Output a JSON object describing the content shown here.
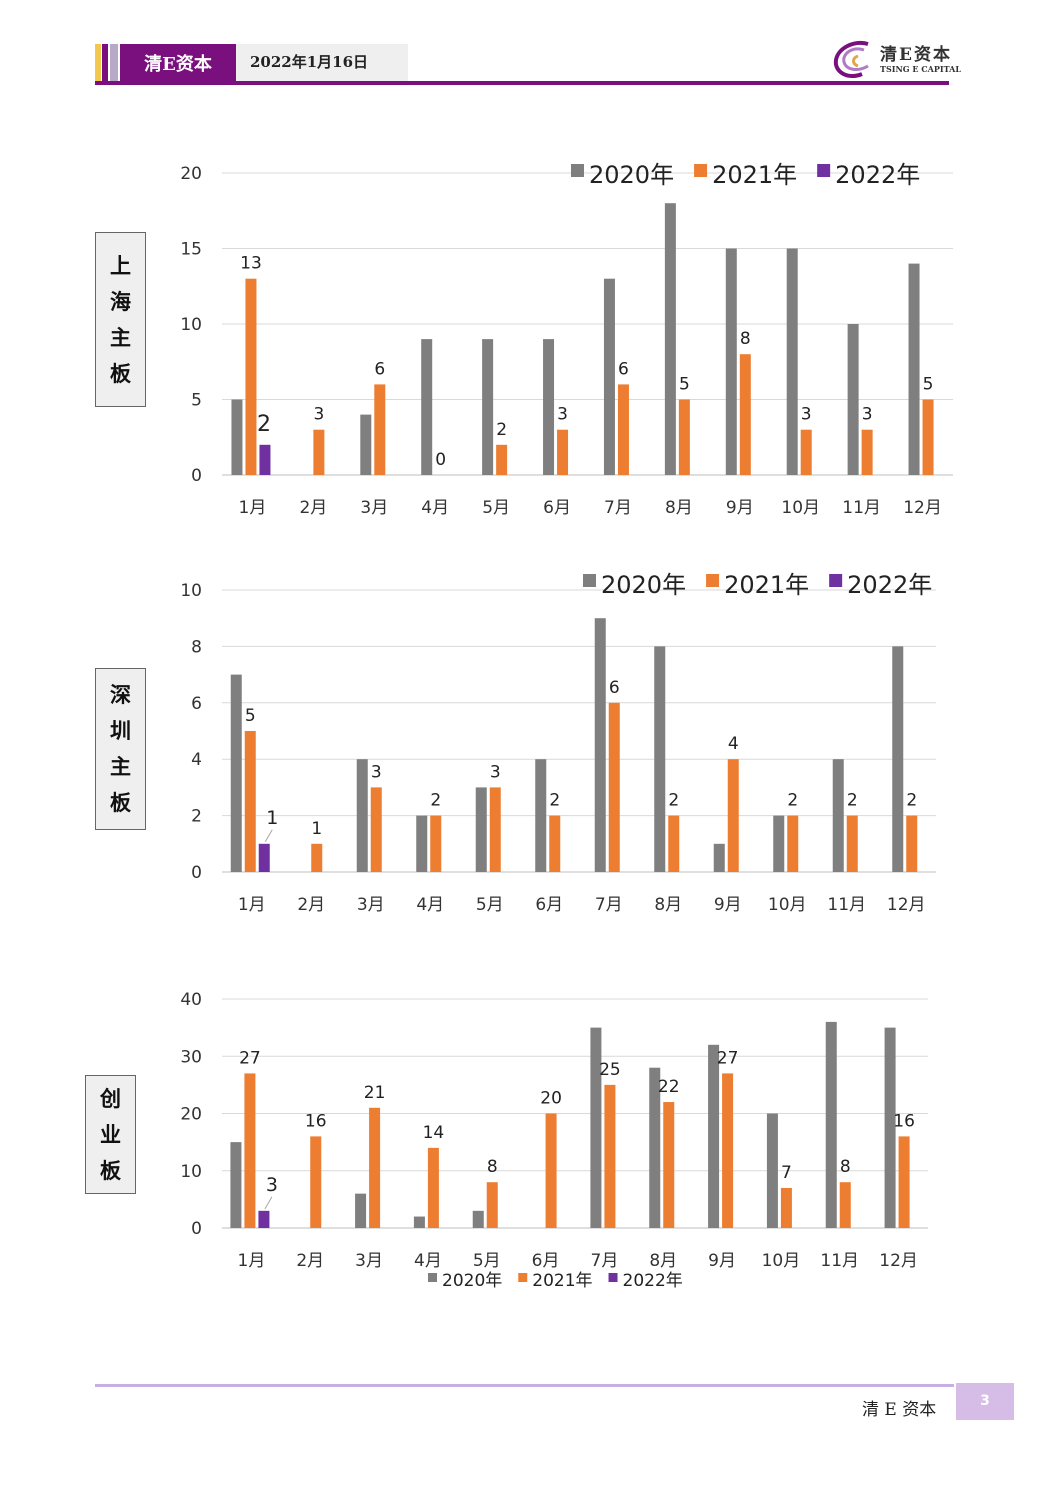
{
  "header": {
    "brand": "清E资本",
    "date": "2022年1月16日"
  },
  "logo": {
    "name": "清E资本",
    "en": "TSING E CAPITAL"
  },
  "footer": {
    "brand": "清 E 资本",
    "page": "3"
  },
  "colors": {
    "s2020": "#7f7f7f",
    "s2021": "#ed7d31",
    "s2022": "#7030a0",
    "grid": "#d9d9d9",
    "brand": "#7a0f7e"
  },
  "chart_data": [
    {
      "type": "bar",
      "side_label": [
        "上",
        "海",
        "主",
        "板"
      ],
      "categories": [
        "1月",
        "2月",
        "3月",
        "4月",
        "5月",
        "6月",
        "7月",
        "8月",
        "9月",
        "10月",
        "11月",
        "12月"
      ],
      "ylim": [
        0,
        20
      ],
      "yticks": [
        0,
        5,
        10,
        15,
        20
      ],
      "grid": true,
      "legend_position": "top-right",
      "series": [
        {
          "name": "2020年",
          "values": [
            5,
            0,
            4,
            9,
            9,
            9,
            13,
            18,
            15,
            15,
            10,
            14
          ]
        },
        {
          "name": "2021年",
          "values": [
            13,
            3,
            6,
            0,
            2,
            3,
            6,
            5,
            8,
            3,
            3,
            5
          ],
          "labels": true
        },
        {
          "name": "2022年",
          "values": [
            2,
            null,
            null,
            null,
            null,
            null,
            null,
            null,
            null,
            null,
            null,
            null
          ],
          "labels": true
        }
      ]
    },
    {
      "type": "bar",
      "side_label": [
        "深",
        "圳",
        "主",
        "板"
      ],
      "categories": [
        "1月",
        "2月",
        "3月",
        "4月",
        "5月",
        "6月",
        "7月",
        "8月",
        "9月",
        "10月",
        "11月",
        "12月"
      ],
      "ylim": [
        0,
        10
      ],
      "yticks": [
        0,
        2,
        4,
        6,
        8,
        10
      ],
      "grid": true,
      "legend_position": "top-right",
      "series": [
        {
          "name": "2020年",
          "values": [
            7,
            0,
            4,
            2,
            3,
            4,
            9,
            8,
            1,
            2,
            4,
            8
          ]
        },
        {
          "name": "2021年",
          "values": [
            5,
            1,
            3,
            2,
            3,
            2,
            6,
            2,
            4,
            2,
            2,
            2
          ],
          "labels": true
        },
        {
          "name": "2022年",
          "values": [
            1,
            null,
            null,
            null,
            null,
            null,
            null,
            null,
            null,
            null,
            null,
            null
          ],
          "labels": true
        }
      ]
    },
    {
      "type": "bar",
      "side_label": [
        "创",
        "业",
        "板"
      ],
      "categories": [
        "1月",
        "2月",
        "3月",
        "4月",
        "5月",
        "6月",
        "7月",
        "8月",
        "9月",
        "10月",
        "11月",
        "12月"
      ],
      "ylim": [
        0,
        40
      ],
      "yticks": [
        0,
        10,
        20,
        30,
        40
      ],
      "grid": true,
      "legend_position": "bottom",
      "series": [
        {
          "name": "2020年",
          "values": [
            15,
            0,
            6,
            2,
            3,
            0,
            35,
            28,
            32,
            20,
            36,
            35
          ]
        },
        {
          "name": "2021年",
          "values": [
            27,
            16,
            21,
            14,
            8,
            20,
            25,
            22,
            27,
            7,
            8,
            16
          ],
          "labels": true
        },
        {
          "name": "2022年",
          "values": [
            3,
            null,
            null,
            null,
            null,
            null,
            null,
            null,
            null,
            null,
            null,
            null
          ],
          "labels": true
        }
      ]
    }
  ]
}
